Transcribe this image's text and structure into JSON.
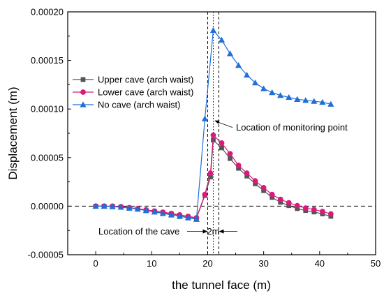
{
  "chart_data": {
    "type": "line",
    "xlabel": "the tunnel face (m)",
    "ylabel": "Displacement (m)",
    "xlim": [
      -5,
      50
    ],
    "ylim": [
      -5e-05,
      0.0002
    ],
    "xticks": [
      0,
      10,
      20,
      30,
      40,
      50
    ],
    "yticks": [
      -5e-05,
      0.0,
      5e-05,
      0.0001,
      0.00015,
      0.0002
    ],
    "xtick_labels": [
      "0",
      "10",
      "20",
      "30",
      "40",
      "50"
    ],
    "ytick_labels": [
      "-0.00005",
      "0.00000",
      "0.00005",
      "0.00010",
      "0.00015",
      "0.00020"
    ],
    "legend_position": "upper-left",
    "grid": false,
    "series": [
      {
        "name": "Upper cave (arch waist)",
        "color": "#555555",
        "marker": "square",
        "x": [
          0,
          1.5,
          3,
          4.5,
          6,
          7.5,
          9,
          10.5,
          12,
          13.5,
          15,
          16.5,
          18,
          19.5,
          20.5,
          21,
          22.5,
          24,
          25.5,
          27,
          28.5,
          30,
          31.5,
          33,
          34.5,
          36,
          37.5,
          39,
          40.5,
          42
        ],
        "y": [
          0.0,
          0.0,
          -5e-07,
          -1e-06,
          -2e-06,
          -3e-06,
          -4.5e-06,
          -5.5e-06,
          -6.8e-06,
          -8e-06,
          -9.5e-06,
          -1.1e-05,
          -1.25e-05,
          1.1e-05,
          3e-05,
          6.8e-05,
          6e-05,
          4.9e-05,
          3.9e-05,
          3.1e-05,
          2.3e-05,
          1.6e-05,
          9e-06,
          4e-06,
          5e-07,
          -2.5e-06,
          -4.5e-06,
          -6e-06,
          -8e-06,
          -1.05e-05
        ]
      },
      {
        "name": "Lower cave (arch waist)",
        "color": "#d81b7a",
        "marker": "circle",
        "x": [
          0,
          1.5,
          3,
          4.5,
          6,
          7.5,
          9,
          10.5,
          12,
          13.5,
          15,
          16.5,
          18,
          19.5,
          20.5,
          21,
          22.5,
          24,
          25.5,
          27,
          28.5,
          30,
          31.5,
          33,
          34.5,
          36,
          37.5,
          39,
          40.5,
          42
        ],
        "y": [
          0.0,
          0.0,
          0.0,
          -5e-07,
          -1.5e-06,
          -2.5e-06,
          -3.8e-06,
          -5e-06,
          -6.2e-06,
          -7.5e-06,
          -9e-06,
          -1.05e-05,
          -1.2e-05,
          1.2e-05,
          3.4e-05,
          7.3e-05,
          6.5e-05,
          5.4e-05,
          4.2e-05,
          3.4e-05,
          2.6e-05,
          1.9e-05,
          1.2e-05,
          7e-06,
          3.5e-06,
          5e-07,
          -2e-06,
          -3.5e-06,
          -5.5e-06,
          -8e-06
        ]
      },
      {
        "name": "No cave (arch waist)",
        "color": "#1f6fd6",
        "marker": "triangle",
        "x": [
          0,
          1.5,
          3,
          4.5,
          6,
          7.5,
          9,
          10.5,
          12,
          13.5,
          15,
          16.5,
          18,
          19.5,
          21,
          22.5,
          24,
          25.5,
          27,
          28.5,
          30,
          31.5,
          33,
          34.5,
          36,
          37.5,
          39,
          40.5,
          42
        ],
        "y": [
          0.0,
          0.0,
          -5e-07,
          -1e-06,
          -2e-06,
          -3e-06,
          -4.5e-06,
          -6e-06,
          -7.5e-06,
          -9e-06,
          -1.05e-05,
          -1.2e-05,
          -1.35e-05,
          9e-05,
          0.000181,
          0.000171,
          0.000157,
          0.000145,
          0.000135,
          0.000127,
          0.000121,
          0.000117,
          0.000114,
          0.000112,
          0.00011,
          0.000109,
          0.000108,
          0.000107,
          0.000105
        ]
      }
    ],
    "reference_lines": {
      "y_zero_dashed": 0.0,
      "cave_lines_x": [
        20,
        22
      ],
      "monitoring_line_x": 21
    },
    "annotations": {
      "monitoring": {
        "text": "Location of monitoring point",
        "x": 21,
        "y": 8.1e-05
      },
      "cave": {
        "text": "Location of the cave",
        "x": 20,
        "y": -2.6e-05
      },
      "span": {
        "text": "2m",
        "x1": 20,
        "x2": 22,
        "y": -2.6e-05
      }
    }
  }
}
